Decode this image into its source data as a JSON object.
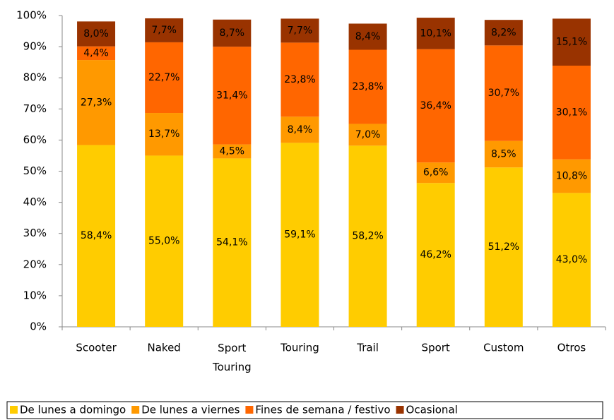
{
  "chart_data": {
    "type": "stacked_bar",
    "categories": [
      "Scooter",
      "Naked",
      "Sport Touring",
      "Touring",
      "Trail",
      "Sport",
      "Custom",
      "Otros"
    ],
    "series": [
      {
        "name": "De lunes a domingo",
        "color": "#FFCC00",
        "values": [
          58.4,
          55.0,
          54.1,
          59.1,
          58.2,
          46.2,
          51.2,
          43.0
        ],
        "value_labels": [
          "58,4%",
          "55,0%",
          "54,1%",
          "59,1%",
          "58,2%",
          "46,2%",
          "51,2%",
          "43,0%"
        ]
      },
      {
        "name": "De lunes a viernes",
        "color": "#FF9900",
        "values": [
          27.3,
          13.7,
          4.5,
          8.4,
          7.0,
          6.6,
          8.5,
          10.8
        ],
        "value_labels": [
          "27,3%",
          "13,7%",
          "4,5%",
          "8,4%",
          "7,0%",
          "6,6%",
          "8,5%",
          "10,8%"
        ]
      },
      {
        "name": "Fines de semana / festivo",
        "color": "#FF6600",
        "values": [
          4.4,
          22.7,
          31.4,
          23.8,
          23.8,
          36.4,
          30.7,
          30.1
        ],
        "value_labels": [
          "4,4%",
          "22,7%",
          "31,4%",
          "23,8%",
          "23,8%",
          "36,4%",
          "30,7%",
          "30,1%"
        ]
      },
      {
        "name": "Ocasional",
        "color": "#993300",
        "values": [
          8.0,
          7.7,
          8.7,
          7.7,
          8.4,
          10.1,
          8.2,
          15.1
        ],
        "value_labels": [
          "8,0%",
          "7,7%",
          "8,7%",
          "7,7%",
          "8,4%",
          "10,1%",
          "8,2%",
          "15,1%"
        ]
      }
    ],
    "ylim": [
      0,
      100
    ],
    "yticks": [
      {
        "value": 0,
        "label": "0%"
      },
      {
        "value": 10,
        "label": "10%"
      },
      {
        "value": 20,
        "label": "20%"
      },
      {
        "value": 30,
        "label": "30%"
      },
      {
        "value": 40,
        "label": "40%"
      },
      {
        "value": 50,
        "label": "50%"
      },
      {
        "value": 60,
        "label": "60%"
      },
      {
        "value": 70,
        "label": "70%"
      },
      {
        "value": 80,
        "label": "80%"
      },
      {
        "value": 90,
        "label": "90%"
      },
      {
        "value": 100,
        "label": "100%"
      }
    ],
    "grid": false,
    "legend": "bottom"
  }
}
